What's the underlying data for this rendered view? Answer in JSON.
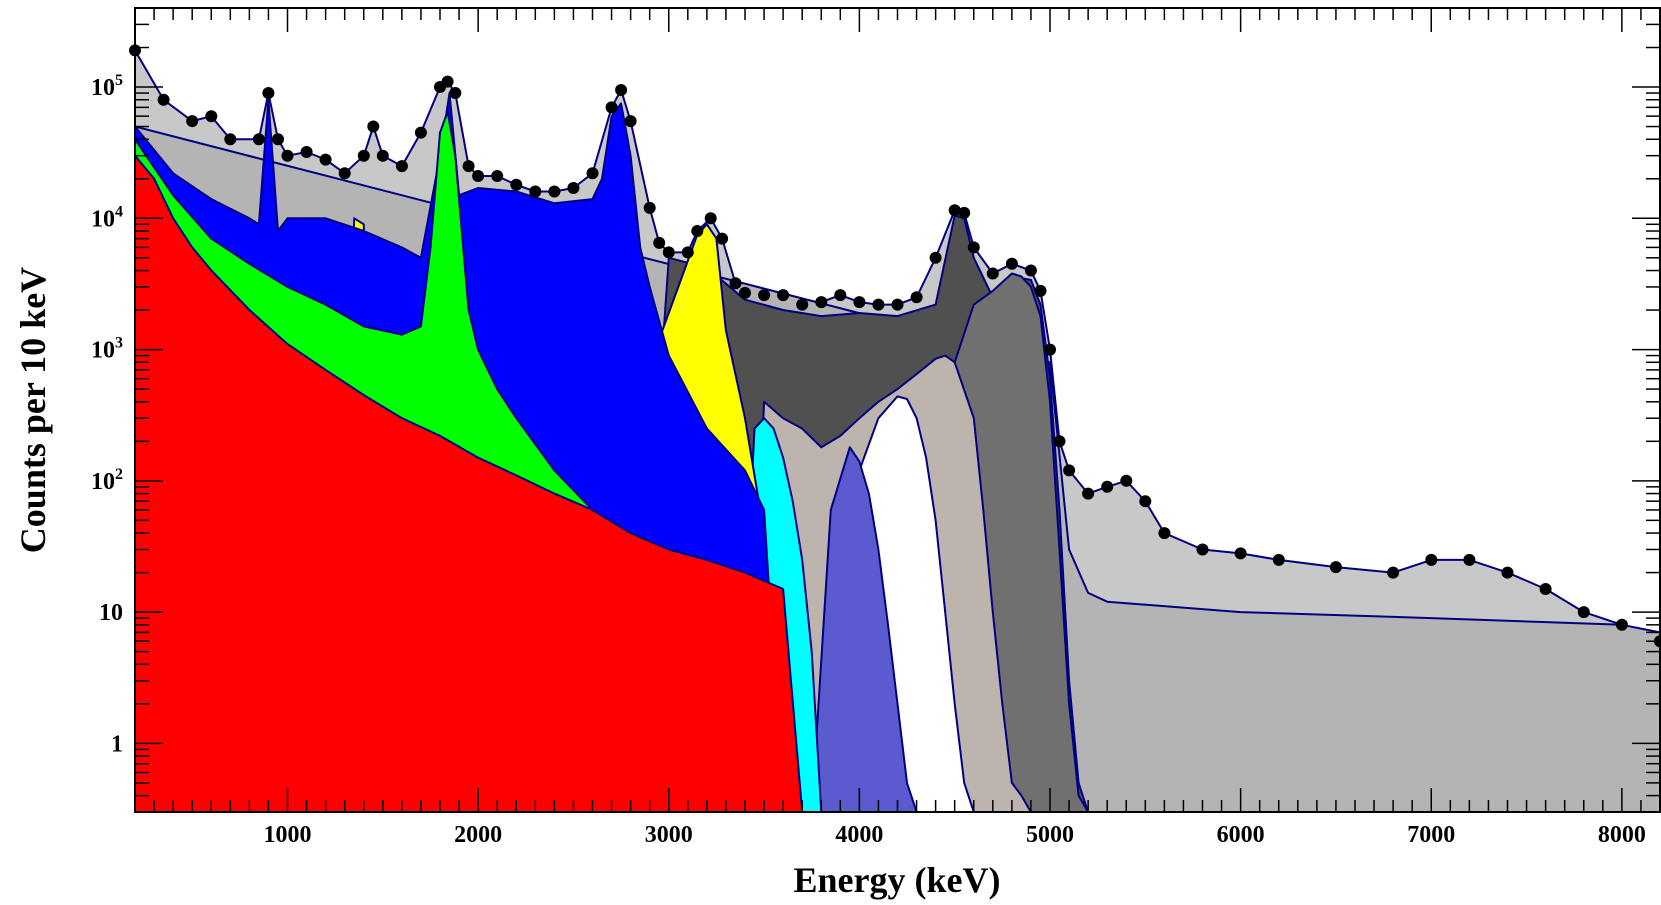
{
  "chart_data": {
    "type": "area",
    "title": "",
    "xlabel": "Energy (keV)",
    "ylabel": "Counts per 10 keV",
    "xlim": [
      200,
      8200
    ],
    "ylim": [
      0.3,
      400000
    ],
    "yscale": "log",
    "x_ticks": [
      1000,
      2000,
      3000,
      4000,
      5000,
      6000,
      7000,
      8000
    ],
    "x_tick_labels": [
      "1000",
      "2000",
      "3000",
      "4000",
      "5000",
      "6000",
      "7000",
      "8000"
    ],
    "y_ticks": [
      {
        "value": 1,
        "base": "1",
        "exp": ""
      },
      {
        "value": 10,
        "base": "10",
        "exp": ""
      },
      {
        "value": 100,
        "base": "10",
        "exp": "2"
      },
      {
        "value": 1000,
        "base": "10",
        "exp": "3"
      },
      {
        "value": 10000,
        "base": "10",
        "exp": "4"
      },
      {
        "value": 100000,
        "base": "10",
        "exp": "5"
      }
    ],
    "colors": {
      "light_gray": "#c8c8c8",
      "mid_gray": "#b4b4b4",
      "dark_gray": "#505050",
      "gray": "#707070",
      "taupe": "#bdb4ad",
      "white": "#ffffff",
      "slate_blue": "#5b5bcf",
      "cyan": "#00ffff",
      "yellow": "#ffff00",
      "blue": "#0000ff",
      "green": "#00ff00",
      "red": "#ff0000",
      "outline": "#000080",
      "data": "#000000"
    },
    "series": [
      {
        "name": "background-total",
        "color": "light_gray",
        "x": [
          200,
          350,
          500,
          600,
          700,
          850,
          900,
          950,
          1000,
          1100,
          1200,
          1300,
          1400,
          1450,
          1500,
          1600,
          1700,
          1800,
          1840,
          1880,
          1950,
          2000,
          2100,
          2200,
          2300,
          2400,
          2500,
          2600,
          2700,
          2750,
          2800,
          2900,
          2950,
          3000,
          3100,
          3150,
          3220,
          3280,
          3350,
          3400,
          3500,
          3600,
          3700,
          3800,
          3900,
          4000,
          4100,
          4200,
          4300,
          4400,
          4500,
          4550,
          4600,
          4700,
          4800,
          4900,
          4950,
          5000,
          5050,
          5100,
          5200,
          5300,
          5400,
          5500,
          5600,
          5800,
          6000,
          6200,
          6500,
          6800,
          7000,
          7200,
          7400,
          7600,
          7800,
          8000,
          8200
        ],
        "y": [
          190000,
          80000,
          55000,
          60000,
          40000,
          40000,
          90000,
          40000,
          30000,
          32000,
          28000,
          22000,
          30000,
          50000,
          30000,
          25000,
          45000,
          100000,
          110000,
          90000,
          25000,
          21000,
          21000,
          18000,
          16000,
          16000,
          17000,
          22000,
          70000,
          95000,
          55000,
          12000,
          6500,
          5500,
          5500,
          8000,
          10000,
          7000,
          3200,
          2700,
          2600,
          2600,
          2200,
          2300,
          2600,
          2300,
          2200,
          2200,
          2500,
          5000,
          11500,
          11000,
          6000,
          3800,
          4500,
          4000,
          2800,
          1000,
          200,
          120,
          80,
          90,
          100,
          70,
          40,
          30,
          28,
          25,
          22,
          20,
          25,
          25,
          20,
          15,
          10,
          8,
          6
        ]
      },
      {
        "name": "flat-continuum",
        "color": "mid_gray",
        "x": [
          200,
          5000,
          5100,
          5200,
          5300,
          6000,
          7000,
          8000,
          8200
        ],
        "y": [
          50000,
          800,
          30,
          14,
          12,
          10,
          9,
          8,
          7
        ]
      },
      {
        "name": "peak-4500",
        "color": "dark_gray",
        "x": [
          2800,
          3000,
          3200,
          3400,
          3600,
          3800,
          4000,
          4200,
          4400,
          4500,
          4550,
          4600,
          4700,
          4800,
          4900,
          4950,
          5000,
          5050,
          5100,
          5150,
          5200
        ],
        "y": [
          0.3,
          5000,
          4200,
          2400,
          2000,
          1800,
          1900,
          1800,
          2200,
          10500,
          10000,
          5000,
          2500,
          3600,
          3400,
          2200,
          600,
          60,
          3,
          0.5,
          0.3
        ]
      },
      {
        "name": "peak-4800",
        "color": "gray",
        "x": [
          4300,
          4500,
          4600,
          4700,
          4800,
          4850,
          4900,
          4950,
          5000,
          5050,
          5100,
          5150,
          5200
        ],
        "y": [
          0.3,
          800,
          2200,
          2800,
          3800,
          3600,
          3000,
          1800,
          400,
          30,
          2,
          0.4,
          0.3
        ]
      },
      {
        "name": "taupe-component",
        "color": "taupe",
        "x": [
          3400,
          3500,
          3600,
          3700,
          3800,
          3900,
          4000,
          4100,
          4200,
          4300,
          4400,
          4450,
          4500,
          4600,
          4650,
          4700,
          4750,
          4800,
          4850,
          4900
        ],
        "y": [
          0.3,
          400,
          300,
          250,
          180,
          220,
          300,
          400,
          500,
          650,
          850,
          900,
          800,
          300,
          60,
          10,
          2,
          0.5,
          0.4,
          0.3
        ]
      },
      {
        "name": "white-component",
        "color": "white",
        "x": [
          3900,
          4000,
          4100,
          4200,
          4250,
          4300,
          4350,
          4400,
          4450,
          4500,
          4550,
          4600
        ],
        "y": [
          0.3,
          120,
          300,
          440,
          420,
          300,
          150,
          50,
          10,
          2,
          0.5,
          0.3
        ]
      },
      {
        "name": "slate-component",
        "color": "slate_blue",
        "x": [
          3750,
          3850,
          3950,
          4000,
          4050,
          4100,
          4150,
          4200,
          4250,
          4300
        ],
        "y": [
          0.3,
          60,
          180,
          140,
          80,
          30,
          8,
          2,
          0.5,
          0.3
        ]
      },
      {
        "name": "cyan-component",
        "color": "cyan",
        "x": [
          3350,
          3450,
          3500,
          3550,
          3600,
          3650,
          3700,
          3750,
          3800
        ],
        "y": [
          0.3,
          250,
          300,
          250,
          150,
          70,
          25,
          5,
          0.3
        ]
      },
      {
        "name": "yellow-component",
        "color": "yellow",
        "x": [
          1250,
          1350,
          1400,
          1450,
          2800,
          2950,
          3050,
          3150,
          3200,
          3250,
          3300,
          3400,
          3500,
          3550,
          3600
        ],
        "y": [
          0.3,
          10000,
          9000,
          0.3,
          0.3,
          1200,
          3000,
          7500,
          9000,
          7000,
          1400,
          300,
          40,
          5,
          0.3
        ]
      },
      {
        "name": "blue-component",
        "color": "blue",
        "x": [
          200,
          400,
          600,
          800,
          850,
          900,
          950,
          1000,
          1200,
          1400,
          1600,
          1700,
          1800,
          1850,
          1900,
          2000,
          2200,
          2400,
          2600,
          2650,
          2700,
          2750,
          2800,
          2850,
          2900,
          3000,
          3200,
          3400,
          3500,
          3600
        ],
        "y": [
          50000,
          22000,
          14000,
          10000,
          9000,
          80000,
          8000,
          10000,
          10000,
          8000,
          6000,
          5000,
          30000,
          90000,
          15000,
          17000,
          16000,
          13000,
          14000,
          20000,
          60000,
          75000,
          30000,
          6000,
          3000,
          900,
          250,
          120,
          60,
          0.3
        ]
      },
      {
        "name": "green-component",
        "color": "green",
        "x": [
          200,
          400,
          600,
          800,
          1000,
          1200,
          1400,
          1600,
          1700,
          1750,
          1800,
          1840,
          1880,
          1950,
          2000,
          2100,
          2200,
          2400,
          2600,
          2800,
          3000
        ],
        "y": [
          40000,
          15000,
          7000,
          4500,
          3000,
          2200,
          1500,
          1300,
          1500,
          6000,
          45000,
          65000,
          30000,
          2000,
          1000,
          500,
          300,
          120,
          60,
          25,
          0.3
        ]
      },
      {
        "name": "red-component",
        "color": "red",
        "x": [
          200,
          300,
          400,
          500,
          600,
          800,
          1000,
          1200,
          1400,
          1600,
          1800,
          2000,
          2200,
          2400,
          2600,
          2800,
          3000,
          3200,
          3400,
          3600,
          3700,
          3800
        ],
        "y": [
          30000,
          20000,
          10000,
          6000,
          4000,
          2000,
          1100,
          700,
          450,
          300,
          220,
          150,
          110,
          80,
          60,
          40,
          30,
          25,
          20,
          15,
          0.3,
          0.3
        ]
      }
    ],
    "data_points": {
      "name": "measured-data",
      "color": "data",
      "x": [
        200,
        350,
        500,
        600,
        700,
        850,
        900,
        950,
        1000,
        1100,
        1200,
        1300,
        1400,
        1450,
        1500,
        1600,
        1700,
        1800,
        1840,
        1880,
        1950,
        2000,
        2100,
        2200,
        2300,
        2400,
        2500,
        2600,
        2700,
        2750,
        2800,
        2900,
        2950,
        3000,
        3100,
        3150,
        3220,
        3280,
        3350,
        3400,
        3500,
        3600,
        3700,
        3800,
        3900,
        4000,
        4100,
        4200,
        4300,
        4400,
        4500,
        4550,
        4600,
        4700,
        4800,
        4900,
        4950,
        5000,
        5050,
        5100,
        5200,
        5300,
        5400,
        5500,
        5600,
        5800,
        6000,
        6200,
        6500,
        6800,
        7000,
        7200,
        7400,
        7600,
        7800,
        8000,
        8200
      ],
      "y": [
        190000,
        80000,
        55000,
        60000,
        40000,
        40000,
        90000,
        40000,
        30000,
        32000,
        28000,
        22000,
        30000,
        50000,
        30000,
        25000,
        45000,
        100000,
        110000,
        90000,
        25000,
        21000,
        21000,
        18000,
        16000,
        16000,
        17000,
        22000,
        70000,
        95000,
        55000,
        12000,
        6500,
        5500,
        5500,
        8000,
        10000,
        7000,
        3200,
        2700,
        2600,
        2600,
        2200,
        2300,
        2600,
        2300,
        2200,
        2200,
        2500,
        5000,
        11500,
        11000,
        6000,
        3800,
        4500,
        4000,
        2800,
        1000,
        200,
        120,
        80,
        90,
        100,
        70,
        40,
        30,
        28,
        25,
        22,
        20,
        25,
        25,
        20,
        15,
        10,
        8,
        6
      ]
    }
  }
}
